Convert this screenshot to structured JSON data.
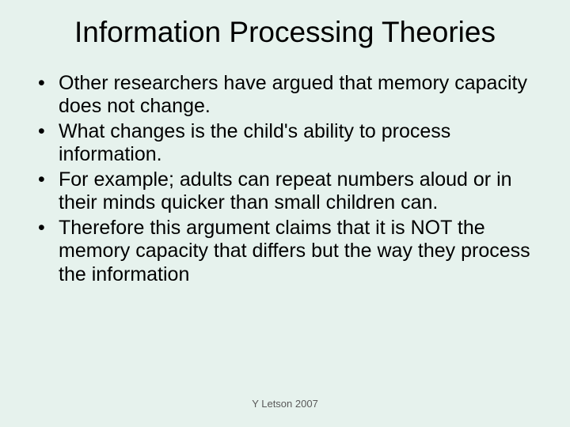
{
  "slide": {
    "background_color": "#e6f2ed",
    "title": {
      "text": "Information Processing Theories",
      "font_family": "Comic Sans MS",
      "font_size_pt": 37,
      "color": "#000000",
      "align": "center"
    },
    "bullets": {
      "items": [
        "Other researchers have argued that memory capacity does not change.",
        "What changes is the child's ability to process information.",
        "For example; adults can repeat numbers aloud or in their minds quicker than small children can.",
        "Therefore this argument claims that it is NOT the memory capacity that differs but the way they process the information"
      ],
      "font_family": "Comic Sans MS",
      "font_size_pt": 25,
      "color": "#000000",
      "bullet_glyph": "•",
      "line_height": 1.18
    },
    "footer": {
      "text": "Y Letson 2007",
      "font_family": "Arial",
      "font_size_pt": 13,
      "color": "#595959",
      "align": "center"
    }
  }
}
